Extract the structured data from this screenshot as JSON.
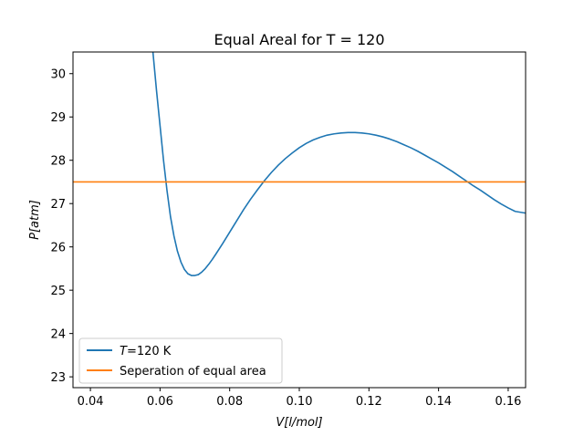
{
  "chart_data": {
    "type": "line",
    "title": "Equal Areal for T = 120",
    "xlabel": "V[l/mol]",
    "ylabel": "P[atm]",
    "xlim": [
      0.035,
      0.165
    ],
    "ylim": [
      22.75,
      30.5
    ],
    "xticks": [
      0.04,
      0.06,
      0.08,
      0.1,
      0.12,
      0.14,
      0.16
    ],
    "xtick_labels": [
      "0.04",
      "0.06",
      "0.08",
      "0.10",
      "0.12",
      "0.14",
      "0.16"
    ],
    "yticks": [
      23,
      24,
      25,
      26,
      27,
      28,
      29,
      30
    ],
    "ytick_labels": [
      "23",
      "24",
      "25",
      "26",
      "27",
      "28",
      "29",
      "30"
    ],
    "grid": false,
    "legend_position": "lower-left",
    "series": [
      {
        "name": "T=120 K",
        "name_italic_part": "T",
        "name_rest": "=120 K",
        "color": "#1f77b4",
        "x": [
          0.0579,
          0.059,
          0.06,
          0.061,
          0.062,
          0.063,
          0.064,
          0.065,
          0.066,
          0.067,
          0.068,
          0.069,
          0.07,
          0.071,
          0.072,
          0.073,
          0.074,
          0.075,
          0.076,
          0.078,
          0.08,
          0.082,
          0.084,
          0.086,
          0.088,
          0.09,
          0.092,
          0.094,
          0.096,
          0.098,
          0.1,
          0.102,
          0.104,
          0.106,
          0.108,
          0.11,
          0.112,
          0.114,
          0.116,
          0.118,
          0.12,
          0.122,
          0.124,
          0.126,
          0.128,
          0.13,
          0.132,
          0.134,
          0.136,
          0.138,
          0.14,
          0.142,
          0.144,
          0.146,
          0.148,
          0.15,
          0.152,
          0.154,
          0.156,
          0.158,
          0.16,
          0.162,
          0.165
        ],
        "y": [
          30.55,
          29.6,
          28.8,
          28.0,
          27.3,
          26.7,
          26.25,
          25.9,
          25.65,
          25.48,
          25.38,
          25.34,
          25.34,
          25.36,
          25.42,
          25.5,
          25.6,
          25.71,
          25.83,
          26.08,
          26.34,
          26.6,
          26.86,
          27.1,
          27.32,
          27.53,
          27.72,
          27.89,
          28.04,
          28.17,
          28.29,
          28.39,
          28.47,
          28.53,
          28.58,
          28.61,
          28.63,
          28.64,
          28.64,
          28.63,
          28.61,
          28.58,
          28.54,
          28.49,
          28.43,
          28.36,
          28.29,
          28.21,
          28.12,
          28.03,
          27.94,
          27.84,
          27.74,
          27.63,
          27.52,
          27.41,
          27.31,
          27.2,
          27.09,
          26.99,
          26.9,
          26.82,
          26.78
        ]
      },
      {
        "name": "Seperation of equal area",
        "color": "#ff7f0e",
        "x": [
          0.035,
          0.165
        ],
        "y": [
          27.5,
          27.5
        ]
      }
    ]
  }
}
